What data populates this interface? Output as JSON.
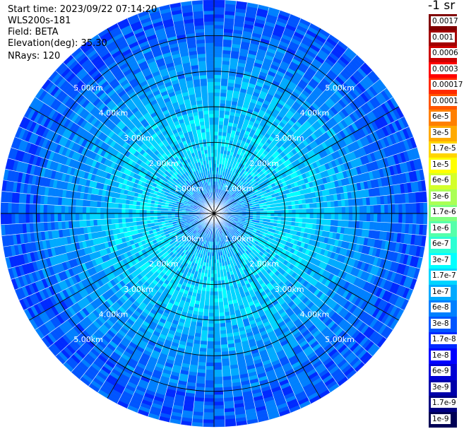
{
  "header": {
    "start_time": "Start time: 2023/09/22 07:14:20",
    "device": "WLS200s-181",
    "field": "Field: BETA",
    "elevation": "Elevation(deg): 35.30",
    "nrays": "NRays: 120"
  },
  "colorbar": {
    "unit": "-1 sr",
    "levels": [
      {
        "label": "0.0017",
        "color": "#800000"
      },
      {
        "label": "0.001",
        "color": "#a30000"
      },
      {
        "label": "0.0006",
        "color": "#cc0000"
      },
      {
        "label": "0.0003",
        "color": "#ff0000"
      },
      {
        "label": "0.00017",
        "color": "#ff2a00"
      },
      {
        "label": "0.0001",
        "color": "#ff5500"
      },
      {
        "label": "6e-5",
        "color": "#ff8000"
      },
      {
        "label": "3e-5",
        "color": "#ffaa00"
      },
      {
        "label": "1.7e-5",
        "color": "#ffd500"
      },
      {
        "label": "1e-5",
        "color": "#ffff00"
      },
      {
        "label": "6e-6",
        "color": "#d4ff2b"
      },
      {
        "label": "3e-6",
        "color": "#aaff55"
      },
      {
        "label": "1.7e-6",
        "color": "#80ff80"
      },
      {
        "label": "1e-6",
        "color": "#55ffaa"
      },
      {
        "label": "6e-7",
        "color": "#2bffd4"
      },
      {
        "label": "3e-7",
        "color": "#00ffff"
      },
      {
        "label": "1.7e-7",
        "color": "#00d5ff"
      },
      {
        "label": "1e-7",
        "color": "#00aaff"
      },
      {
        "label": "6e-8",
        "color": "#0080ff"
      },
      {
        "label": "3e-8",
        "color": "#0055ff"
      },
      {
        "label": "1.7e-8",
        "color": "#002aff"
      },
      {
        "label": "1e-8",
        "color": "#0000ff"
      },
      {
        "label": "6e-9",
        "color": "#0000d4"
      },
      {
        "label": "3e-9",
        "color": "#0000aa"
      },
      {
        "label": "1.7e-9",
        "color": "#000080"
      },
      {
        "label": "1e-9",
        "color": "#000055"
      }
    ]
  },
  "chart_data": {
    "type": "heatmap",
    "projection": "polar",
    "field": "BETA",
    "n_rays": 120,
    "range_rings_km": [
      1,
      2,
      3,
      4,
      5
    ],
    "range_labels": [
      "1.00km",
      "2.00km",
      "3.00km",
      "4.00km",
      "5.00km"
    ],
    "max_range_km": 6,
    "n_range_gates": 60,
    "radial_profile": [
      {
        "range_km": 0.0,
        "value": "3e-8"
      },
      {
        "range_km": 0.5,
        "value": "6e-8"
      },
      {
        "range_km": 1.0,
        "value": "1e-7"
      },
      {
        "range_km": 1.5,
        "value": "1.7e-7"
      },
      {
        "range_km": 2.5,
        "value": "1.7e-7"
      },
      {
        "range_km": 3.5,
        "value": "1e-7"
      },
      {
        "range_km": 4.5,
        "value": "6e-8"
      },
      {
        "range_km": 5.5,
        "value": "3e-8"
      },
      {
        "range_km": 6.0,
        "value": "3e-8"
      }
    ],
    "color_scale": "jet",
    "grid": true
  }
}
